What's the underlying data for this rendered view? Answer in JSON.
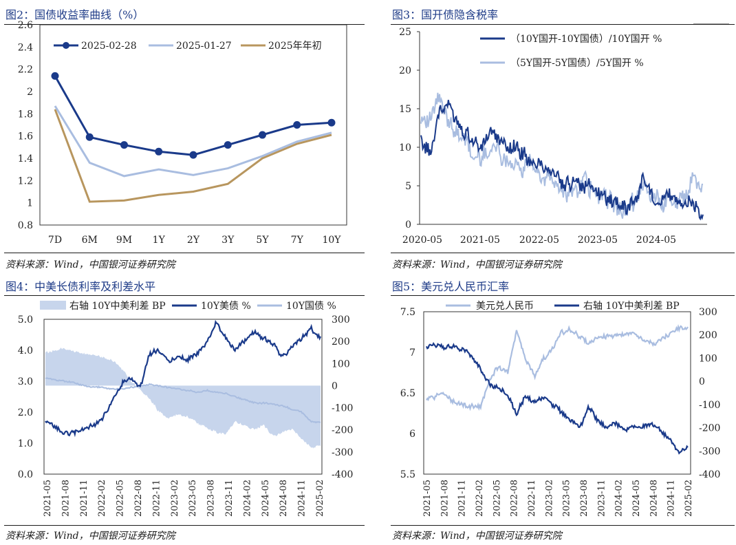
{
  "colors": {
    "navy": "#1a3a8a",
    "light": "#a9bde0",
    "fill": "#c7d5ec",
    "tan": "#b8965e",
    "title": "#1f3c88"
  },
  "panels": [
    {
      "id": "p1",
      "title": "图2：国债收益率曲线（%）",
      "source": "资料来源：Wind，中国银河证券研究院"
    },
    {
      "id": "p2",
      "title": "图3：国开债隐含税率",
      "source": "资料来源：Wind，中国银河证券研究院"
    },
    {
      "id": "p3",
      "title": "图4：中美长债利率及利差水平",
      "source": "资料来源：Wind，中国银河证券研究院"
    },
    {
      "id": "p4",
      "title": "图5：美元兑人民币汇率",
      "source": "资料来源：Wind，中国银河证券研究院"
    }
  ],
  "chart_data": [
    {
      "type": "line",
      "categories": [
        "7D",
        "6M",
        "9M",
        "1Y",
        "2Y",
        "3Y",
        "5Y",
        "7Y",
        "10Y"
      ],
      "ylim": [
        0.8,
        2.6
      ],
      "yticks": [
        "0.8",
        "1",
        "1.2",
        "1.4",
        "1.6",
        "1.8",
        "2",
        "2.2",
        "2.4",
        "2.6"
      ],
      "legend_position": "top",
      "series": [
        {
          "name": "2025-02-28",
          "color": "#1a3a8a",
          "values": [
            2.14,
            1.59,
            1.52,
            1.46,
            1.43,
            1.52,
            1.61,
            1.7,
            1.72
          ]
        },
        {
          "name": "2025-01-27",
          "color": "#a9bde0",
          "values": [
            1.87,
            1.36,
            1.24,
            1.3,
            1.25,
            1.31,
            1.42,
            1.55,
            1.63
          ]
        },
        {
          "name": "2025年年初",
          "color": "#b8965e",
          "values": [
            1.84,
            1.01,
            1.02,
            1.07,
            1.1,
            1.17,
            1.4,
            1.53,
            1.61
          ]
        }
      ]
    },
    {
      "type": "line",
      "xlabels": [
        "2020-05",
        "2021-05",
        "2022-05",
        "2023-05",
        "2024-05"
      ],
      "ylim": [
        0,
        25
      ],
      "yticks": [
        "0",
        "5",
        "10",
        "15",
        "20",
        "25"
      ],
      "legend_position": "top-right",
      "series": [
        {
          "name": "（10Y国开-10Y国债）/10Y国开 %",
          "color": "#1a3a8a",
          "values": [
            11,
            9,
            14,
            16,
            14,
            12,
            11,
            10,
            12,
            11,
            10,
            10,
            9,
            8,
            8,
            7,
            6,
            5,
            6,
            5,
            5,
            4,
            3,
            3,
            2,
            3,
            6,
            4,
            3,
            4,
            3,
            3,
            2,
            1
          ]
        },
        {
          "name": "（5Y国开-5Y国债）/5Y国开 %",
          "color": "#a9bde0",
          "values": [
            14,
            13,
            17,
            14,
            12,
            11,
            9,
            9,
            10,
            10,
            8,
            8,
            7,
            8,
            6,
            6,
            5,
            4,
            4,
            6,
            4,
            4,
            3,
            2,
            2,
            3,
            5,
            4,
            3,
            3,
            3,
            4,
            6,
            5
          ]
        }
      ]
    },
    {
      "type": "line",
      "xlabels": [
        "2021-05",
        "2021-08",
        "2021-11",
        "2022-02",
        "2022-05",
        "2022-08",
        "2022-11",
        "2023-02",
        "2023-05",
        "2023-08",
        "2023-11",
        "2024-02",
        "2024-05",
        "2024-08",
        "2024-11",
        "2025-02"
      ],
      "ylim": [
        0,
        5
      ],
      "yticks": [
        "0.0",
        "1.0",
        "2.0",
        "3.0",
        "4.0",
        "5.0"
      ],
      "y2lim": [
        -400,
        300
      ],
      "y2ticks": [
        "-400",
        "-300",
        "-200",
        "-100",
        "0",
        "100",
        "200",
        "300"
      ],
      "legend_position": "top",
      "series": [
        {
          "name": "右轴 10Y中美利差 BP",
          "kind": "area",
          "axis": "right",
          "color": "#c7d5ec",
          "values": [
            150,
            160,
            170,
            155,
            145,
            140,
            130,
            120,
            80,
            20,
            -20,
            -60,
            -120,
            -150,
            -130,
            -140,
            -170,
            -190,
            -210,
            -220,
            -160,
            -180,
            -200,
            -180,
            -230,
            -210,
            -200,
            -240,
            -280,
            -270
          ]
        },
        {
          "name": "10Y美债 %",
          "kind": "line",
          "axis": "left",
          "color": "#1a3a8a",
          "values": [
            1.65,
            1.55,
            1.3,
            1.35,
            1.45,
            1.55,
            1.8,
            2.3,
            2.9,
            3.1,
            2.8,
            3.9,
            4.0,
            3.6,
            3.8,
            3.7,
            3.9,
            4.2,
            4.9,
            4.4,
            4.0,
            4.3,
            4.6,
            4.4,
            4.2,
            3.8,
            4.1,
            4.4,
            4.7,
            4.4
          ]
        },
        {
          "name": "10Y国债 %",
          "kind": "line",
          "axis": "left",
          "color": "#a9bde0",
          "values": [
            3.1,
            3.05,
            3.0,
            2.95,
            2.85,
            2.8,
            2.8,
            2.75,
            2.75,
            2.8,
            2.85,
            2.9,
            2.85,
            2.8,
            2.75,
            2.7,
            2.65,
            2.7,
            2.65,
            2.6,
            2.5,
            2.4,
            2.3,
            2.3,
            2.25,
            2.2,
            2.1,
            2.0,
            1.7,
            1.65
          ]
        }
      ]
    },
    {
      "type": "line",
      "xlabels": [
        "2021-05",
        "2021-08",
        "2021-11",
        "2022-02",
        "2022-05",
        "2022-08",
        "2022-11",
        "2023-02",
        "2023-05",
        "2023-08",
        "2023-11",
        "2024-02",
        "2024-05",
        "2024-08",
        "2024-11",
        "2025-02"
      ],
      "ylim": [
        5.5,
        7.5
      ],
      "yticks": [
        "5.5",
        "6",
        "6.5",
        "7",
        "7.5"
      ],
      "y2lim": [
        -400,
        300
      ],
      "y2ticks": [
        "-400",
        "-300",
        "-200",
        "-100",
        "0",
        "100",
        "200",
        "300"
      ],
      "legend_position": "top",
      "series": [
        {
          "name": "美元兑人民币",
          "kind": "line",
          "axis": "left",
          "color": "#a9bde0",
          "values": [
            6.42,
            6.46,
            6.48,
            6.39,
            6.35,
            6.34,
            6.32,
            6.67,
            6.82,
            6.75,
            7.26,
            6.9,
            6.72,
            6.92,
            7.05,
            7.25,
            7.28,
            7.2,
            7.12,
            7.18,
            7.2,
            7.21,
            7.22,
            7.24,
            7.16,
            7.1,
            7.15,
            7.23,
            7.3,
            7.28
          ]
        },
        {
          "name": "右轴 10Y中美利差 BP",
          "kind": "line",
          "axis": "right",
          "color": "#1a3a8a",
          "values": [
            150,
            160,
            145,
            150,
            140,
            110,
            50,
            -10,
            -30,
            -60,
            -140,
            -60,
            -90,
            -70,
            -100,
            -130,
            -170,
            -200,
            -110,
            -170,
            -200,
            -180,
            -210,
            -190,
            -200,
            -180,
            -210,
            -250,
            -300,
            -285
          ]
        }
      ]
    }
  ]
}
